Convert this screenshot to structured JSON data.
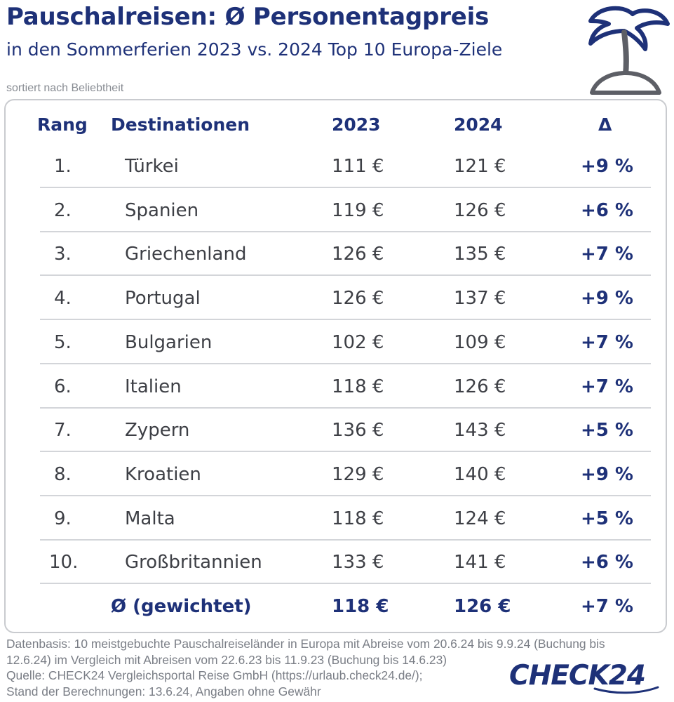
{
  "header": {
    "title": "Pauschalreisen: Ø Personentagpreis",
    "subtitle": "in den Sommerferien 2023 vs. 2024 Top 10 Europa-Ziele",
    "sort_note": "sortiert nach Beliebtheit",
    "icon": "palm-island-icon"
  },
  "table": {
    "columns": [
      "Rang",
      "Destinationen",
      "2023",
      "2024",
      "Δ"
    ],
    "rows": [
      {
        "rank": "1.",
        "destination": "Türkei",
        "y2023": "111 €",
        "y2024": "121 €",
        "delta": "+9 %"
      },
      {
        "rank": "2.",
        "destination": "Spanien",
        "y2023": "119 €",
        "y2024": "126 €",
        "delta": "+6 %"
      },
      {
        "rank": "3.",
        "destination": "Griechenland",
        "y2023": "126 €",
        "y2024": "135 €",
        "delta": "+7 %"
      },
      {
        "rank": "4.",
        "destination": "Portugal",
        "y2023": "126 €",
        "y2024": "137 €",
        "delta": "+9 %"
      },
      {
        "rank": "5.",
        "destination": "Bulgarien",
        "y2023": "102 €",
        "y2024": "109 €",
        "delta": "+7 %"
      },
      {
        "rank": "6.",
        "destination": "Italien",
        "y2023": "118 €",
        "y2024": "126 €",
        "delta": "+7 %"
      },
      {
        "rank": "7.",
        "destination": "Zypern",
        "y2023": "136 €",
        "y2024": "143 €",
        "delta": "+5 %"
      },
      {
        "rank": "8.",
        "destination": "Kroatien",
        "y2023": "129 €",
        "y2024": "140 €",
        "delta": "+9 %"
      },
      {
        "rank": "9.",
        "destination": "Malta",
        "y2023": "118 €",
        "y2024": "124 €",
        "delta": "+5 %"
      },
      {
        "rank": "10.",
        "destination": "Großbritannien",
        "y2023": "133 €",
        "y2024": "141 €",
        "delta": "+6 %"
      }
    ],
    "average": {
      "label": "Ø (gewichtet)",
      "y2023": "118 €",
      "y2024": "126 €",
      "delta": "+7 %"
    }
  },
  "footer": {
    "lines": [
      "Datenbasis: 10 meistgebuchte Pauschalreiseländer in Europa mit Abreise vom 20.6.24 bis 9.9.24 (Buchung bis",
      "12.6.24) im Vergleich mit Abreisen vom 22.6.23 bis 11.9.23 (Buchung bis 14.6.23)",
      "Quelle: CHECK24 Vergleichsportal Reise GmbH (https://urlaub.check24.de/);",
      "Stand der Berechnungen: 13.6.24, Angaben ohne Gewähr"
    ],
    "brand": "CHECK24"
  },
  "colors": {
    "primary": "#1e3178",
    "text": "#3d3f45",
    "muted": "#7a7e86",
    "border": "#c9cbcf",
    "separator": "#d3d5d9"
  }
}
